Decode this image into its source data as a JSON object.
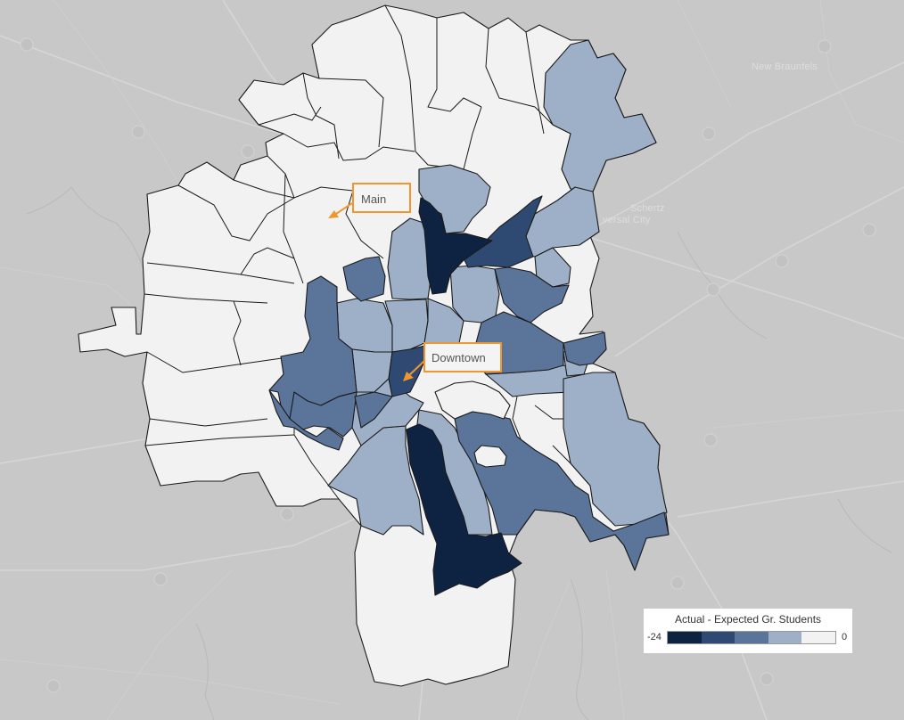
{
  "map": {
    "place_labels": {
      "new_braunfels": "New Braunfels",
      "schertz": "Schertz",
      "universal_city": "versal City"
    },
    "colors": {
      "level_0": "#f2f2f2",
      "level_1": "#9eb0c8",
      "level_2": "#5b7499",
      "level_3": "#2f4a72",
      "level_4": "#0e2242",
      "background": "#c8c8c8",
      "callout_border": "#f0962e"
    }
  },
  "callouts": {
    "main": "Main",
    "downtown": "Downtown"
  },
  "legend": {
    "title": "Actual - Expected Gr. Students",
    "min_label": "-24",
    "max_label": "0",
    "swatches": [
      {
        "name": "level-4",
        "color": "#0e2242"
      },
      {
        "name": "level-3",
        "color": "#2f4a72"
      },
      {
        "name": "level-2",
        "color": "#5b7499"
      },
      {
        "name": "level-1",
        "color": "#9eb0c8"
      },
      {
        "name": "level-0",
        "color": "#f2f2f2"
      }
    ]
  }
}
